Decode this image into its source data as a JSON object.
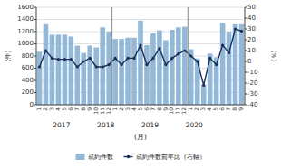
{
  "chart_data": {
    "type": "bar",
    "categories": [
      "1",
      "2",
      "3",
      "4",
      "5",
      "6",
      "7",
      "8",
      "9",
      "10",
      "11",
      "12",
      "1",
      "2",
      "3",
      "4",
      "5",
      "6",
      "7",
      "8",
      "9",
      "10",
      "11",
      "12",
      "1",
      "2",
      "3",
      "4",
      "5",
      "6",
      "7",
      "8",
      "9"
    ],
    "series": [
      {
        "name": "成約件数",
        "type": "bar",
        "color": "#93b8d8",
        "values": [
          870,
          1320,
          1150,
          1150,
          1150,
          1120,
          970,
          850,
          970,
          940,
          1270,
          1200,
          1080,
          1080,
          1100,
          1100,
          1380,
          980,
          1170,
          1220,
          1060,
          1230,
          1270,
          1280,
          910,
          760,
          330,
          840,
          780,
          1340,
          1200,
          1320,
          1320
        ]
      },
      {
        "name": "成約件数前年比（右軸）",
        "type": "line",
        "color": "#1a2e5a",
        "marker": "circle",
        "axis": "y2",
        "values": [
          -5,
          10,
          3,
          2,
          2,
          2,
          -5,
          0,
          3,
          -5,
          -5,
          -3,
          3,
          -3,
          3,
          3,
          15,
          -3,
          3,
          12,
          -3,
          3,
          7,
          10,
          5,
          0,
          -22,
          3,
          -3,
          15,
          8,
          30,
          28
        ]
      }
    ],
    "ylim": [
      0,
      1600
    ],
    "yticks": [
      0,
      200,
      400,
      600,
      800,
      1000,
      1200,
      1400,
      1600
    ],
    "y2lim": [
      -40,
      50
    ],
    "y2ticks": [
      -40,
      -30,
      -20,
      -10,
      0,
      10,
      20,
      30,
      40,
      50
    ],
    "y_label": "(件)",
    "y2_label": "(％)",
    "x_label": "(月)",
    "annotations": [
      {
        "text": "2017",
        "x": 3.5
      },
      {
        "text": "2018",
        "x": 10.5
      },
      {
        "text": "2019",
        "x": 17.5
      },
      {
        "text": "2020",
        "x": 24.5
      },
      {
        "type": "vline",
        "x": 11.5
      },
      {
        "type": "vline",
        "x": 23.5
      }
    ],
    "grid": true,
    "legend": "bottom"
  }
}
